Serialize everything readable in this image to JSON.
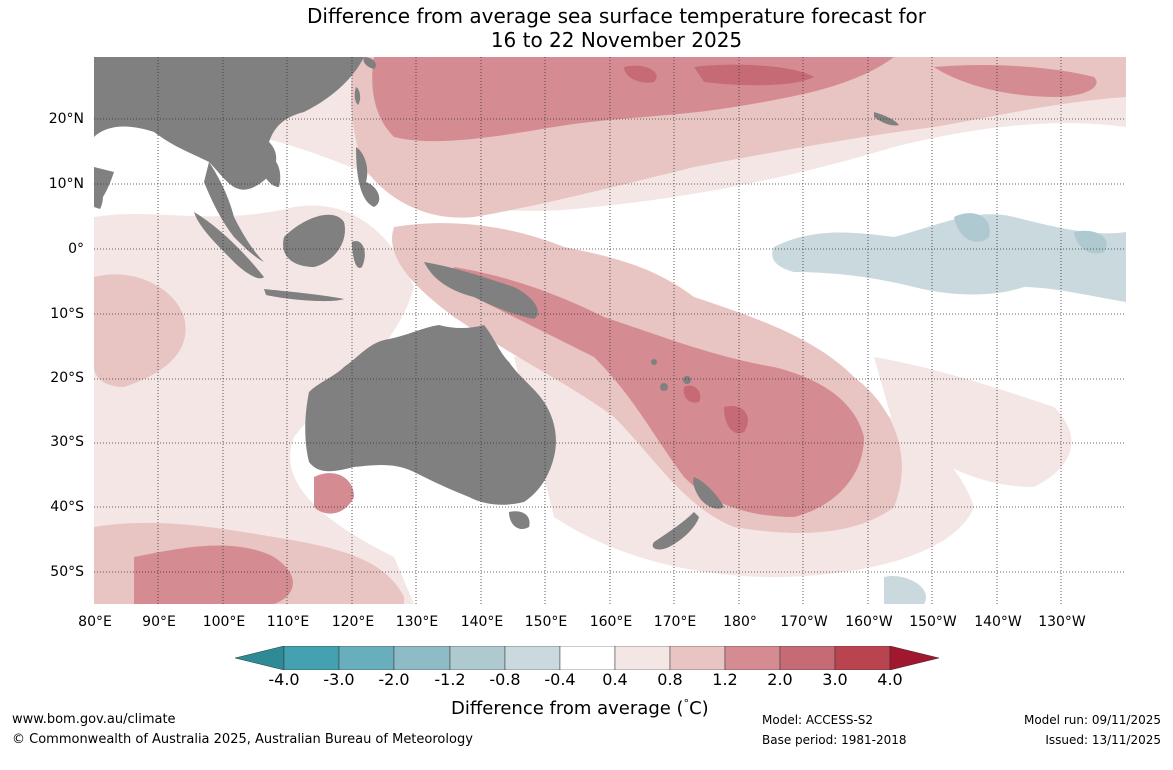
{
  "title": {
    "line1": "Difference from average sea surface temperature forecast for",
    "line2": "16 to 22 November 2025"
  },
  "map": {
    "lat_labels": [
      "20°N",
      "10°N",
      "0°",
      "10°S",
      "20°S",
      "30°S",
      "40°S",
      "50°S"
    ],
    "lon_labels": [
      "80°E",
      "90°E",
      "100°E",
      "110°E",
      "120°E",
      "130°E",
      "140°E",
      "150°E",
      "160°E",
      "170°E",
      "180°",
      "170°W",
      "160°W",
      "150°W",
      "140°W",
      "130°W"
    ],
    "lon_range": [
      80,
      240
    ],
    "lat_range": [
      -55,
      30
    ],
    "land_color": "#808080",
    "grid_style": "dotted"
  },
  "colorbar": {
    "ticks": [
      "-4.0",
      "-3.0",
      "-2.0",
      "-1.2",
      "-0.8",
      "-0.4",
      "0.4",
      "0.8",
      "1.2",
      "2.0",
      "3.0",
      "4.0"
    ],
    "colors": [
      "#2e8b96",
      "#43a1b2",
      "#69aebc",
      "#8dbcc6",
      "#aec9cf",
      "#c9d9dd",
      "#ffffff",
      "#f4e6e5",
      "#e8c4c2",
      "#d48c92",
      "#c66a76",
      "#b9434f",
      "#a1172d"
    ],
    "label": "Difference from average (",
    "label_degree": "°",
    "label_unit": "C)"
  },
  "footer": {
    "website": "www.bom.gov.au/climate",
    "copyright": "© Commonwealth of Australia 2025, Australian Bureau of Meteorology",
    "model": "Model: ACCESS-S2",
    "base_period": "Base period: 1981-2018",
    "model_run": "Model run: 09/11/2025",
    "issued": "Issued: 13/11/2025"
  }
}
